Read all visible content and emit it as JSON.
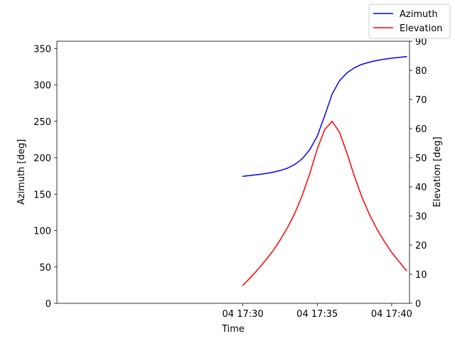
{
  "chart_data": {
    "type": "line",
    "xlabel": "Time",
    "ylabel_left": "Azimuth [deg]",
    "ylabel_right": "Elevation [deg]",
    "xlim_minutes": [
      17.5,
      41.2
    ],
    "x_ticks": [
      {
        "minute": 30,
        "label": "04 17:30"
      },
      {
        "minute": 35,
        "label": "04 17:35"
      },
      {
        "minute": 40,
        "label": "04 17:40"
      }
    ],
    "ylim_left": [
      0,
      360
    ],
    "yticks_left": [
      0,
      50,
      100,
      150,
      200,
      250,
      300,
      350
    ],
    "ylim_right": [
      0,
      90
    ],
    "yticks_right": [
      0,
      10,
      20,
      30,
      40,
      50,
      60,
      70,
      80,
      90
    ],
    "x_minutes": [
      30.0,
      30.5,
      31.0,
      31.5,
      32.0,
      32.5,
      33.0,
      33.5,
      34.0,
      34.5,
      35.0,
      35.5,
      36.0,
      36.5,
      37.0,
      37.5,
      38.0,
      38.5,
      39.0,
      39.5,
      40.0,
      40.5,
      41.0
    ],
    "series": [
      {
        "name": "Azimuth",
        "axis": "left",
        "color": "#0000ff",
        "values": [
          174.5,
          175.6,
          176.8,
          178.2,
          180.0,
          182.4,
          185.6,
          190.8,
          198.7,
          211.2,
          229.6,
          257.6,
          287.5,
          305.8,
          316.6,
          323.6,
          328.2,
          331.2,
          333.5,
          335.3,
          336.7,
          337.8,
          338.8
        ]
      },
      {
        "name": "Elevation",
        "axis": "right",
        "color": "#ff0000",
        "values": [
          6.2,
          8.8,
          11.6,
          14.6,
          17.9,
          21.7,
          26.0,
          31.0,
          37.2,
          44.6,
          53.0,
          59.7,
          62.5,
          58.7,
          51.5,
          43.6,
          36.5,
          30.6,
          25.6,
          21.3,
          17.5,
          14.3,
          11.2
        ]
      }
    ],
    "legend_position": "top-right",
    "grid": false
  }
}
